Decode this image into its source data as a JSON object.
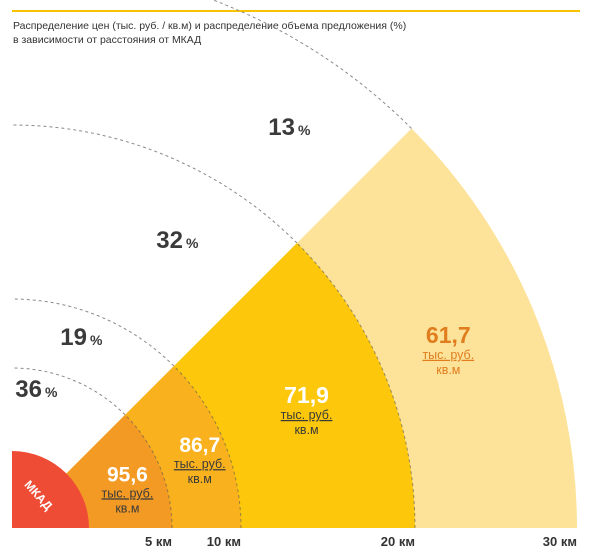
{
  "title_line1": "Распределение цен (тыс. руб. / кв.м) и распределение объема предложения (%)",
  "title_line2": "в зависимости от расстояния от МКАД",
  "chart_data": {
    "type": "sector-rings",
    "center_label": "МКАД",
    "unit_line1": "тыс. руб.",
    "unit_line2": "кв.м",
    "percent_symbol": "%",
    "axis_ticks": [
      "5 км",
      "10 км",
      "20 км",
      "30 км"
    ],
    "bands": [
      {
        "to_km": 5,
        "tick": "5 км",
        "price": "95,6",
        "percent": "36",
        "color": "#f39a25",
        "price_color": "#ffffff",
        "unit_color": "#3a3a3a"
      },
      {
        "to_km": 10,
        "tick": "10 км",
        "price": "86,7",
        "percent": "19",
        "color": "#f9b21e",
        "price_color": "#ffffff",
        "unit_color": "#3a3a3a"
      },
      {
        "to_km": 20,
        "tick": "20 км",
        "price": "71,9",
        "percent": "32",
        "color": "#fdc80b",
        "price_color": "#ffffff",
        "unit_color": "#3a3a3a"
      },
      {
        "to_km": 30,
        "tick": "30 км",
        "price": "61,7",
        "percent": "13",
        "color": "#fde39a",
        "price_color": "#e07d1e",
        "unit_color": "#e07d1e"
      }
    ],
    "mkad_color": "#ef4c36"
  }
}
